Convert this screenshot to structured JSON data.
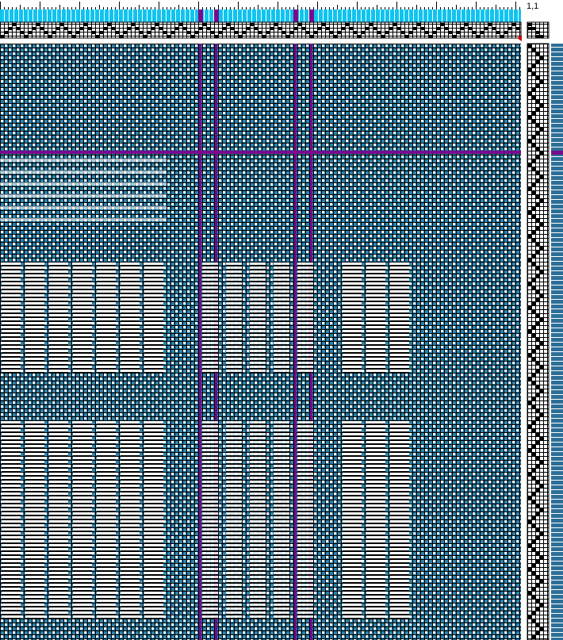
{
  "header": {
    "position": "1,1"
  }
}
